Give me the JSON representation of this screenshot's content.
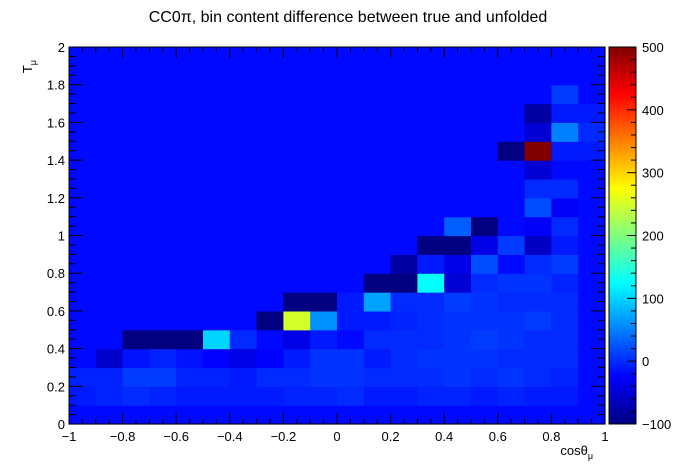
{
  "chart_data": {
    "type": "heatmap",
    "title": "CC0π, bin content difference between true and unfolded",
    "xlabel": "cosθ",
    "xlabel_sub": "μ",
    "ylabel": "T",
    "ylabel_sub": "μ",
    "xlim": [
      -1,
      1
    ],
    "ylim": [
      0,
      2
    ],
    "x_bins": 20,
    "y_bins": 20,
    "x_ticks": [
      -1,
      -0.8,
      -0.6,
      -0.4,
      -0.2,
      0,
      0.2,
      0.4,
      0.6,
      0.8,
      1
    ],
    "x_tick_labels": [
      "−1",
      "−0.8",
      "−0.6",
      "−0.4",
      "−0.2",
      "0",
      "0.2",
      "0.4",
      "0.6",
      "0.8",
      "1"
    ],
    "y_ticks": [
      0,
      0.2,
      0.4,
      0.6,
      0.8,
      1,
      1.2,
      1.4,
      1.6,
      1.8,
      2
    ],
    "y_tick_labels": [
      "0",
      "0.2",
      "0.4",
      "0.6",
      "0.8",
      "1",
      "1.2",
      "1.4",
      "1.6",
      "1.8",
      "2"
    ],
    "zlim": [
      -100,
      500
    ],
    "z_ticks": [
      -100,
      0,
      100,
      200,
      300,
      400,
      500
    ],
    "z_tick_labels": [
      "−100",
      "0",
      "100",
      "200",
      "300",
      "400",
      "500"
    ],
    "colormap": "jet",
    "values": [
      [
        -20,
        -20,
        -20,
        -20,
        -20,
        -20,
        -20,
        -20,
        -20,
        -20,
        -20,
        -20,
        -20,
        -20,
        -20,
        -20,
        -20,
        -20,
        -20,
        -20
      ],
      [
        -10,
        -5,
        0,
        -5,
        -10,
        -10,
        -10,
        -10,
        -5,
        -5,
        0,
        -10,
        -10,
        -5,
        -5,
        -10,
        -5,
        -10,
        -10,
        -20
      ],
      [
        -5,
        -5,
        10,
        10,
        -5,
        -5,
        -10,
        0,
        0,
        5,
        5,
        0,
        0,
        0,
        5,
        0,
        5,
        0,
        -5,
        -20
      ],
      [
        -20,
        -55,
        -15,
        -5,
        -15,
        -25,
        -40,
        -25,
        -10,
        5,
        5,
        -10,
        0,
        5,
        5,
        5,
        0,
        0,
        0,
        -20
      ],
      [
        -20,
        -20,
        -100,
        -100,
        -100,
        100,
        0,
        -20,
        -40,
        -10,
        -20,
        0,
        0,
        0,
        5,
        10,
        5,
        0,
        0,
        -20
      ],
      [
        -20,
        -20,
        -20,
        -20,
        -20,
        -20,
        -20,
        -100,
        250,
        60,
        -10,
        -10,
        -5,
        0,
        5,
        5,
        5,
        10,
        0,
        -20
      ],
      [
        -20,
        -20,
        -20,
        -20,
        -20,
        -20,
        -20,
        -20,
        -100,
        -100,
        -10,
        70,
        0,
        0,
        10,
        5,
        0,
        0,
        0,
        -20
      ],
      [
        -20,
        -20,
        -20,
        -20,
        -20,
        -20,
        -20,
        -20,
        -20,
        -20,
        -20,
        -100,
        -100,
        125,
        -50,
        0,
        5,
        5,
        -5,
        -20
      ],
      [
        -20,
        -20,
        -20,
        -20,
        -20,
        -20,
        -20,
        -20,
        -20,
        -20,
        -20,
        -20,
        -80,
        -10,
        -40,
        20,
        -20,
        0,
        10,
        -20
      ],
      [
        -20,
        -20,
        -20,
        -20,
        -20,
        -20,
        -20,
        -20,
        -20,
        -20,
        -20,
        -20,
        -20,
        -100,
        -100,
        -40,
        10,
        -60,
        -10,
        -20
      ],
      [
        -20,
        -20,
        -20,
        -20,
        -20,
        -20,
        -20,
        -20,
        -20,
        -20,
        -20,
        -20,
        -20,
        -20,
        30,
        -100,
        -20,
        -30,
        0,
        -20
      ],
      [
        -20,
        -20,
        -20,
        -20,
        -20,
        -20,
        -20,
        -20,
        -20,
        -20,
        -20,
        -20,
        -20,
        -20,
        -20,
        -20,
        -20,
        20,
        -30,
        -20
      ],
      [
        -20,
        -20,
        -20,
        -20,
        -20,
        -20,
        -20,
        -20,
        -20,
        -20,
        -20,
        -20,
        -20,
        -20,
        -20,
        -20,
        -20,
        0,
        0,
        -20
      ],
      [
        -20,
        -20,
        -20,
        -20,
        -20,
        -20,
        -20,
        -20,
        -20,
        -20,
        -20,
        -20,
        -20,
        -20,
        -20,
        -20,
        -20,
        -50,
        -20,
        -20
      ],
      [
        -20,
        -20,
        -20,
        -20,
        -20,
        -20,
        -20,
        -20,
        -20,
        -20,
        -20,
        -20,
        -20,
        -20,
        -20,
        -20,
        -100,
        500,
        -10,
        -10
      ],
      [
        -20,
        -20,
        -20,
        -20,
        -20,
        -20,
        -20,
        -20,
        -20,
        -20,
        -20,
        -20,
        -20,
        -20,
        -20,
        -20,
        -20,
        -50,
        50,
        0
      ],
      [
        -20,
        -20,
        -20,
        -20,
        -20,
        -20,
        -20,
        -20,
        -20,
        -20,
        -20,
        -20,
        -20,
        -20,
        -20,
        -20,
        -20,
        -80,
        -10,
        -10
      ],
      [
        -20,
        -20,
        -20,
        -20,
        -20,
        -20,
        -20,
        -20,
        -20,
        -20,
        -20,
        -20,
        -20,
        -20,
        -20,
        -20,
        -20,
        -20,
        10,
        -20
      ],
      [
        -20,
        -20,
        -20,
        -20,
        -20,
        -20,
        -20,
        -20,
        -20,
        -20,
        -20,
        -20,
        -20,
        -20,
        -20,
        -20,
        -20,
        -20,
        -20,
        -20
      ],
      [
        -20,
        -20,
        -20,
        -20,
        -20,
        -20,
        -20,
        -20,
        -20,
        -20,
        -20,
        -20,
        -20,
        -20,
        -20,
        -20,
        -20,
        -20,
        -20,
        -20
      ]
    ]
  }
}
